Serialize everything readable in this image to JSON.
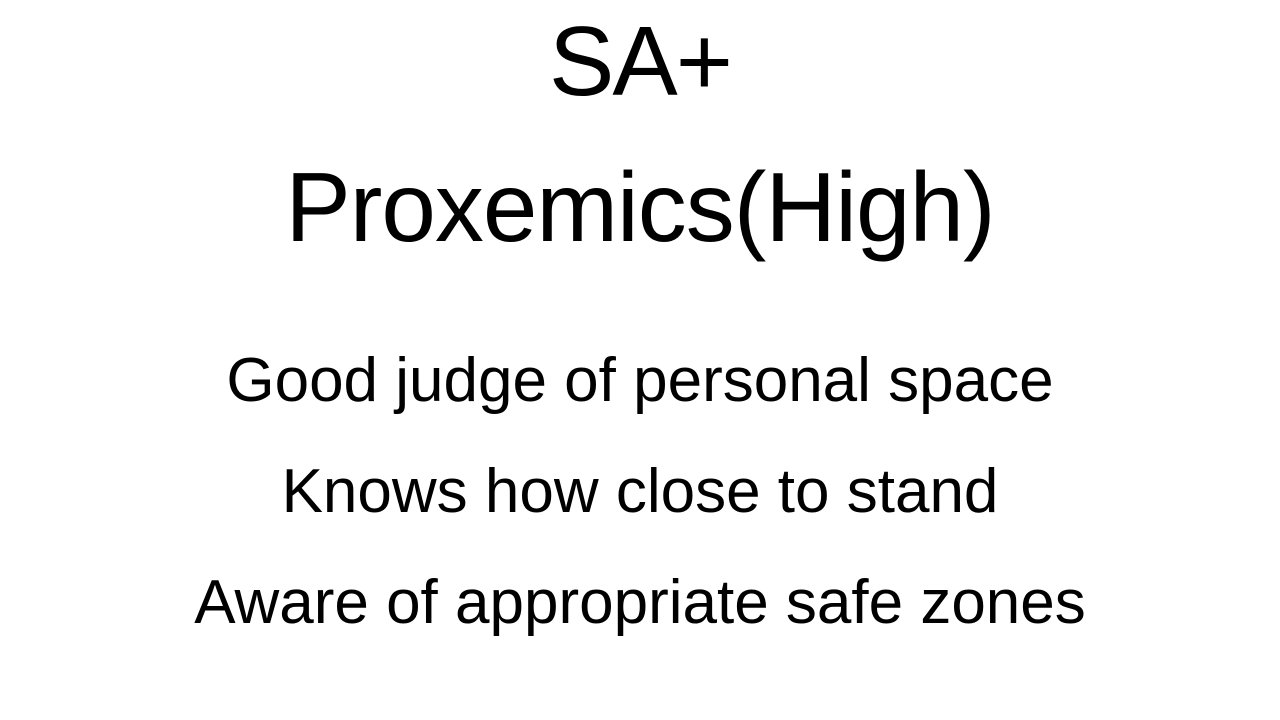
{
  "slide": {
    "title_line_1": "SA+",
    "title_line_2": "Proxemics(High)",
    "body_lines": [
      "Good judge of personal space",
      "Knows how close to stand",
      "Aware of appropriate safe zones"
    ]
  }
}
